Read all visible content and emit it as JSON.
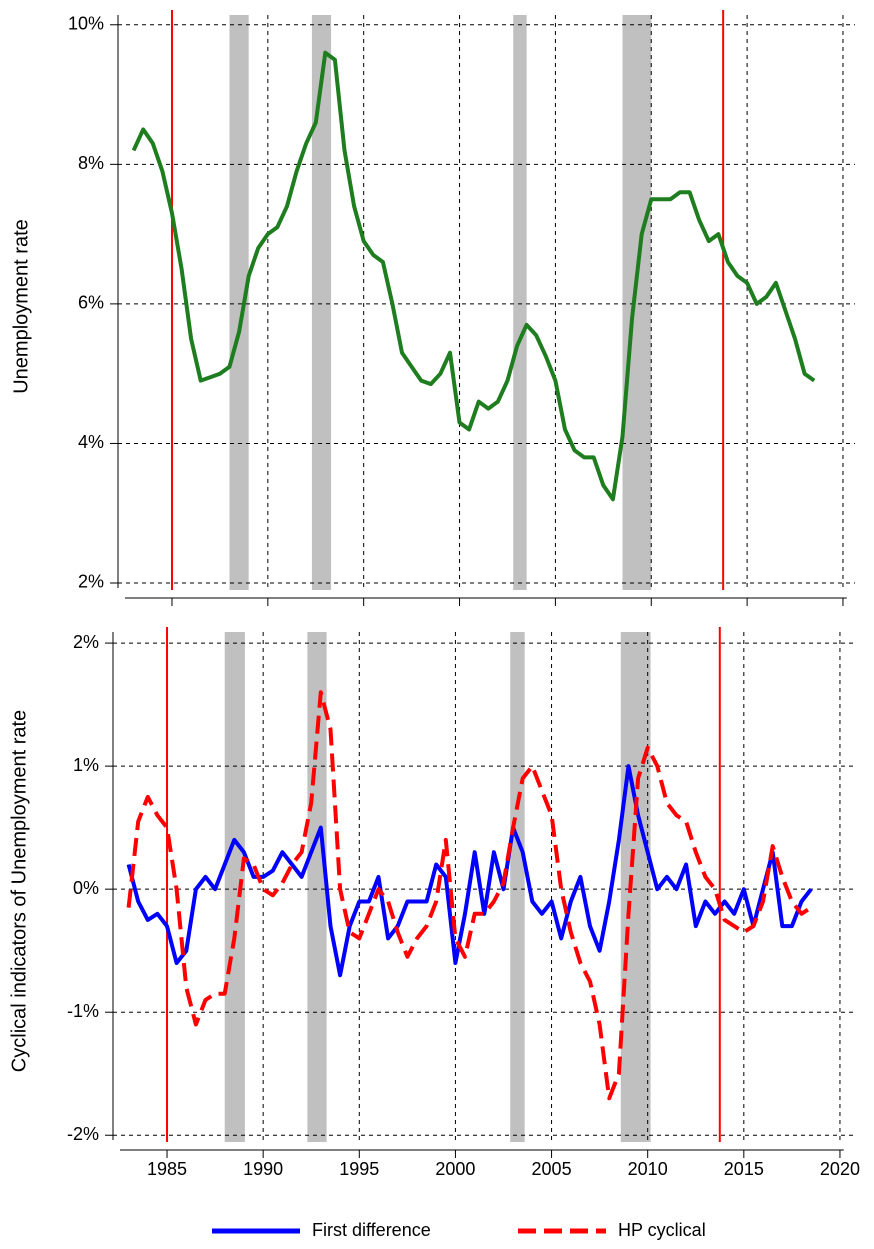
{
  "chart_data": [
    {
      "type": "line",
      "y_label": "Unemployment rate",
      "color": "#1e7d1e",
      "x": [
        1983,
        1983.5,
        1984,
        1984.5,
        1985,
        1985.5,
        1986,
        1986.5,
        1987,
        1987.5,
        1988,
        1988.5,
        1989,
        1989.5,
        1990,
        1990.5,
        1991,
        1991.5,
        1992,
        1992.5,
        1993,
        1993.5,
        1994,
        1994.5,
        1995,
        1995.5,
        1996,
        1996.5,
        1997,
        1997.5,
        1998,
        1998.5,
        1999,
        1999.5,
        2000,
        2000.5,
        2001,
        2001.5,
        2002,
        2002.5,
        2003,
        2003.5,
        2004,
        2004.5,
        2005,
        2005.5,
        2006,
        2006.5,
        2007,
        2007.5,
        2008,
        2008.5,
        2009,
        2009.5,
        2010,
        2010.5,
        2011,
        2011.5,
        2012,
        2012.5,
        2013,
        2013.5,
        2014,
        2014.5,
        2015,
        2015.5,
        2016,
        2016.5,
        2017,
        2017.5,
        2018,
        2018.5
      ],
      "values": [
        8.2,
        8.5,
        8.3,
        7.9,
        7.3,
        6.5,
        5.5,
        4.9,
        4.95,
        5.0,
        5.1,
        5.6,
        6.4,
        6.8,
        7.0,
        7.1,
        7.4,
        7.9,
        8.3,
        8.6,
        9.6,
        9.5,
        8.2,
        7.4,
        6.9,
        6.7,
        6.6,
        6.0,
        5.3,
        5.1,
        4.9,
        4.85,
        5.0,
        5.3,
        4.3,
        4.2,
        4.6,
        4.5,
        4.6,
        4.9,
        5.4,
        5.7,
        5.55,
        5.25,
        4.9,
        4.2,
        3.9,
        3.8,
        3.8,
        3.4,
        3.2,
        4.1,
        5.8,
        7.0,
        7.5,
        7.5,
        7.5,
        7.6,
        7.6,
        7.2,
        6.9,
        7.0,
        6.6,
        6.4,
        6.3,
        6.0,
        6.1,
        6.3,
        5.9,
        5.5,
        5.0,
        4.9
      ],
      "xlim": [
        1982.2,
        2020.2
      ],
      "ylim": [
        1.785,
        10.14
      ],
      "xticks": [
        1985,
        1990,
        1995,
        2000,
        2005,
        2010,
        2015,
        2020
      ],
      "yticks": [
        {
          "value": 2,
          "label": "2%"
        },
        {
          "value": 4,
          "label": "4%"
        },
        {
          "value": 6,
          "label": "6%"
        },
        {
          "value": 8,
          "label": "8%"
        },
        {
          "value": 10,
          "label": "10%"
        }
      ],
      "grid": true,
      "shaded": [
        [
          1988.0,
          1989.0
        ],
        [
          1992.3,
          1993.3
        ],
        [
          2002.8,
          2003.5
        ],
        [
          2008.5,
          2010.0
        ]
      ],
      "shade_color": "#c0c0c0",
      "vlines": [
        1985,
        2013.75
      ],
      "vline_color": "#ff0000"
    },
    {
      "type": "line",
      "y_label": "Cyclical indicators of Unemployment rate",
      "x": [
        1983,
        1983.5,
        1984,
        1984.5,
        1985,
        1985.5,
        1986,
        1986.5,
        1987,
        1987.5,
        1988,
        1988.5,
        1989,
        1989.5,
        1990,
        1990.5,
        1991,
        1991.5,
        1992,
        1992.5,
        1993,
        1993.5,
        1994,
        1994.5,
        1995,
        1995.5,
        1996,
        1996.5,
        1997,
        1997.5,
        1998,
        1998.5,
        1999,
        1999.5,
        2000,
        2000.5,
        2001,
        2001.5,
        2002,
        2002.5,
        2003,
        2003.5,
        2004,
        2004.5,
        2005,
        2005.5,
        2006,
        2006.5,
        2007,
        2007.5,
        2008,
        2008.5,
        2009,
        2009.5,
        2010,
        2010.5,
        2011,
        2011.5,
        2012,
        2012.5,
        2013,
        2013.5,
        2014,
        2014.5,
        2015,
        2015.5,
        2016,
        2016.5,
        2017,
        2017.5,
        2018,
        2018.5
      ],
      "series": [
        {
          "name": "First difference",
          "color": "#0000ff",
          "dashed": false,
          "values": [
            0.2,
            -0.1,
            -0.25,
            -0.2,
            -0.3,
            -0.6,
            -0.5,
            0.0,
            0.1,
            0.0,
            0.2,
            0.4,
            0.3,
            0.1,
            0.1,
            0.15,
            0.3,
            0.2,
            0.1,
            0.3,
            0.5,
            -0.3,
            -0.7,
            -0.3,
            -0.1,
            -0.1,
            0.1,
            -0.4,
            -0.3,
            -0.1,
            -0.1,
            -0.1,
            0.2,
            0.1,
            -0.6,
            -0.2,
            0.3,
            -0.2,
            0.3,
            0.0,
            0.5,
            0.3,
            -0.1,
            -0.2,
            -0.1,
            -0.4,
            -0.1,
            0.1,
            -0.3,
            -0.5,
            -0.1,
            0.4,
            1.0,
            0.6,
            0.3,
            0.0,
            0.1,
            0.0,
            0.2,
            -0.3,
            -0.1,
            -0.2,
            -0.1,
            -0.2,
            0.0,
            -0.3,
            0.0,
            0.3,
            -0.3,
            -0.3,
            -0.1,
            0.0
          ]
        },
        {
          "name": "HP cyclical",
          "color": "#ff0000",
          "dashed": true,
          "values": [
            -0.15,
            0.55,
            0.75,
            0.6,
            0.5,
            0.0,
            -0.8,
            -1.1,
            -0.9,
            -0.85,
            -0.85,
            -0.4,
            0.25,
            0.2,
            0.0,
            -0.05,
            0.05,
            0.2,
            0.3,
            0.7,
            1.6,
            1.3,
            0.0,
            -0.35,
            -0.4,
            -0.2,
            0.0,
            -0.1,
            -0.35,
            -0.55,
            -0.4,
            -0.3,
            -0.1,
            0.4,
            -0.4,
            -0.55,
            -0.2,
            -0.2,
            -0.1,
            0.05,
            0.5,
            0.9,
            1.0,
            0.8,
            0.6,
            0.0,
            -0.35,
            -0.6,
            -0.75,
            -1.1,
            -1.7,
            -1.5,
            -0.2,
            0.9,
            1.15,
            1.0,
            0.7,
            0.6,
            0.55,
            0.3,
            0.1,
            0.0,
            -0.25,
            -0.3,
            -0.35,
            -0.3,
            -0.1,
            0.35,
            0.1,
            -0.1,
            -0.2,
            -0.15
          ]
        }
      ],
      "xlim": [
        1982.2,
        2020.2
      ],
      "ylim": [
        -2.12,
        2.09
      ],
      "xticks": [
        1985,
        1990,
        1995,
        2000,
        2005,
        2010,
        2015,
        2020
      ],
      "yticks": [
        {
          "value": -2,
          "label": "-2%"
        },
        {
          "value": -1,
          "label": "-1%"
        },
        {
          "value": 0,
          "label": "0%"
        },
        {
          "value": 1,
          "label": "1%"
        },
        {
          "value": 2,
          "label": "2%"
        }
      ],
      "grid": true,
      "shaded": [
        [
          1988.0,
          1989.05
        ],
        [
          1992.3,
          1993.3
        ],
        [
          2002.85,
          2003.6
        ],
        [
          2008.6,
          2010.15
        ]
      ],
      "shade_color": "#c0c0c0",
      "vlines": [
        1985,
        2013.75
      ],
      "vline_color": "#ff0000"
    }
  ]
}
